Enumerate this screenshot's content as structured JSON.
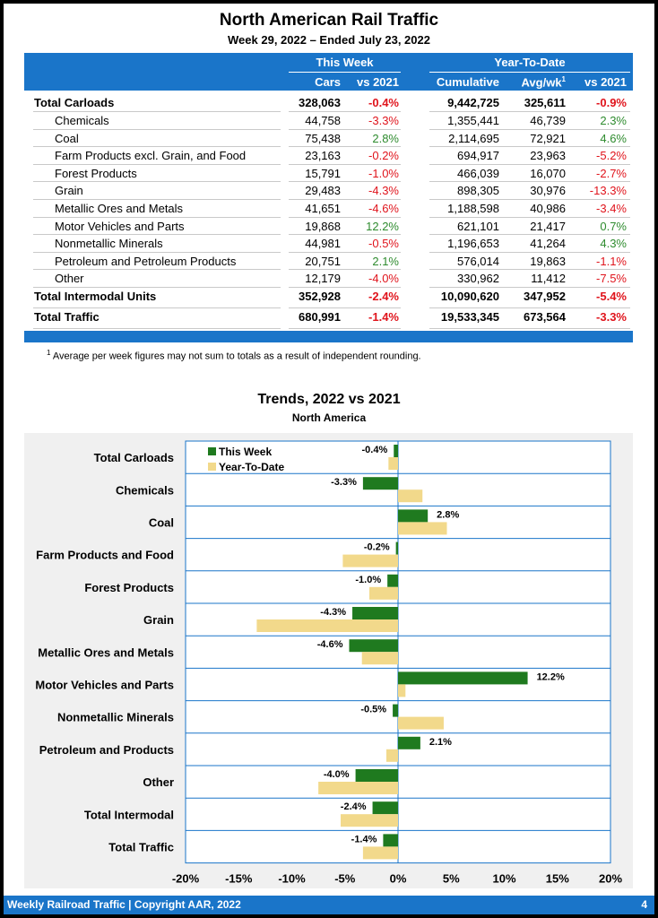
{
  "title": "North American Rail Traffic",
  "subtitle": "Week 29, 2022 – Ended July 23, 2022",
  "table": {
    "group_this_week": "This Week",
    "group_ytd": "Year-To-Date",
    "col_cars": "Cars",
    "col_vs2021": "vs 2021",
    "col_cumulative": "Cumulative",
    "col_avgwk": "Avg/wk",
    "col_avgwk_sup": "1",
    "col_vs2021_ytd": "vs 2021",
    "rows": [
      {
        "label": "Total Carloads",
        "cars": "328,063",
        "vs": "-0.4%",
        "cum": "9,442,725",
        "avg": "325,611",
        "vsy": "-0.9%",
        "bold": true
      },
      {
        "label": "Chemicals",
        "cars": "44,758",
        "vs": "-3.3%",
        "cum": "1,355,441",
        "avg": "46,739",
        "vsy": "2.3%"
      },
      {
        "label": "Coal",
        "cars": "75,438",
        "vs": "2.8%",
        "cum": "2,114,695",
        "avg": "72,921",
        "vsy": "4.6%"
      },
      {
        "label": "Farm Products excl. Grain, and Food",
        "cars": "23,163",
        "vs": "-0.2%",
        "cum": "694,917",
        "avg": "23,963",
        "vsy": "-5.2%"
      },
      {
        "label": "Forest Products",
        "cars": "15,791",
        "vs": "-1.0%",
        "cum": "466,039",
        "avg": "16,070",
        "vsy": "-2.7%"
      },
      {
        "label": "Grain",
        "cars": "29,483",
        "vs": "-4.3%",
        "cum": "898,305",
        "avg": "30,976",
        "vsy": "-13.3%"
      },
      {
        "label": "Metallic Ores and Metals",
        "cars": "41,651",
        "vs": "-4.6%",
        "cum": "1,188,598",
        "avg": "40,986",
        "vsy": "-3.4%"
      },
      {
        "label": "Motor Vehicles and Parts",
        "cars": "19,868",
        "vs": "12.2%",
        "cum": "621,101",
        "avg": "21,417",
        "vsy": "0.7%"
      },
      {
        "label": "Nonmetallic Minerals",
        "cars": "44,981",
        "vs": "-0.5%",
        "cum": "1,196,653",
        "avg": "41,264",
        "vsy": "4.3%"
      },
      {
        "label": "Petroleum and Petroleum Products",
        "cars": "20,751",
        "vs": "2.1%",
        "cum": "576,014",
        "avg": "19,863",
        "vsy": "-1.1%"
      },
      {
        "label": "Other",
        "cars": "12,179",
        "vs": "-4.0%",
        "cum": "330,962",
        "avg": "11,412",
        "vsy": "-7.5%"
      },
      {
        "label": "Total Intermodal Units",
        "cars": "352,928",
        "vs": "-2.4%",
        "cum": "10,090,620",
        "avg": "347,952",
        "vsy": "-5.4%",
        "bold": true
      },
      {
        "label": "Total Traffic",
        "cars": "680,991",
        "vs": "-1.4%",
        "cum": "19,533,345",
        "avg": "673,564",
        "vsy": "-3.3%",
        "bold": true
      }
    ]
  },
  "footnote_sup": "1",
  "footnote": "Average per week figures may not sum to totals as a result of independent rounding.",
  "chart_data": {
    "type": "bar",
    "orientation": "horizontal",
    "title": "Trends, 2022 vs 2021",
    "subtitle": "North America",
    "categories": [
      "Total Carloads",
      "Chemicals",
      "Coal",
      "Farm Products and Food",
      "Forest Products",
      "Grain",
      "Metallic Ores and Metals",
      "Motor Vehicles and Parts",
      "Nonmetallic Minerals",
      "Petroleum and Products",
      "Other",
      "Total Intermodal",
      "Total Traffic"
    ],
    "series": [
      {
        "name": "This Week",
        "values": [
          -0.4,
          -3.3,
          2.8,
          -0.2,
          -1.0,
          -4.3,
          -4.6,
          12.2,
          -0.5,
          2.1,
          -4.0,
          -2.4,
          -1.4
        ],
        "labels": [
          "-0.4%",
          "-3.3%",
          "2.8%",
          "-0.2%",
          "-1.0%",
          "-4.3%",
          "-4.6%",
          "12.2%",
          "-0.5%",
          "2.1%",
          "-4.0%",
          "-2.4%",
          "-1.4%"
        ],
        "color": "#1f7a1f"
      },
      {
        "name": "Year-To-Date",
        "values": [
          -0.9,
          2.3,
          4.6,
          -5.2,
          -2.7,
          -13.3,
          -3.4,
          0.7,
          4.3,
          -1.1,
          -7.5,
          -5.4,
          -3.3
        ],
        "color": "#f2d98b"
      }
    ],
    "xlim": [
      -20,
      20
    ],
    "xticks": [
      "-20%",
      "-15%",
      "-10%",
      "-5%",
      "0%",
      "5%",
      "10%",
      "15%",
      "20%"
    ],
    "legend": "top-left"
  },
  "colors": {
    "accent": "#1a75c9",
    "negative": "#e0141c",
    "positive": "#2e8b2e"
  },
  "footer": {
    "left": "Weekly Railroad Traffic | Copyright AAR, 2022",
    "page": "4"
  }
}
